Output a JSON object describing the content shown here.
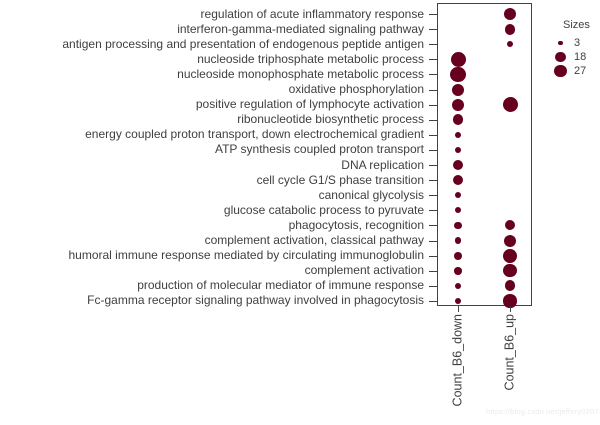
{
  "figure": {
    "background": "#ffffff",
    "watermark": "https://blog.csdn.net/jeffery0207"
  },
  "chart_data": {
    "type": "scatter",
    "subtype": "dotplot-bubble",
    "title": "",
    "xlabel": "",
    "ylabel": "",
    "grid": false,
    "legend_position": "right",
    "dot_color": "#67001F",
    "size_encoding": "area",
    "categories": [
      "Count_B6_down",
      "Count_B6_up"
    ],
    "rows": [
      {
        "label": "regulation of acute inflammatory response",
        "down": null,
        "up": 27
      },
      {
        "label": "interferon-gamma-mediated signaling pathway",
        "down": null,
        "up": 19
      },
      {
        "label": "antigen processing and presentation of endogenous peptide antigen",
        "down": null,
        "up": 6
      },
      {
        "label": "nucleoside triphosphate metabolic process",
        "down": 36,
        "up": null
      },
      {
        "label": "nucleoside monophosphate metabolic process",
        "down": 38,
        "up": null
      },
      {
        "label": "oxidative phosphorylation",
        "down": 23,
        "up": null
      },
      {
        "label": "positive regulation of lymphocyte activation",
        "down": 23,
        "up": 36
      },
      {
        "label": "ribonucleotide biosynthetic process",
        "down": 19,
        "up": null
      },
      {
        "label": "energy coupled proton transport, down electrochemical gradient",
        "down": 7,
        "up": null
      },
      {
        "label": "ATP synthesis coupled proton transport",
        "down": 7,
        "up": null
      },
      {
        "label": "DNA replication",
        "down": 18,
        "up": null
      },
      {
        "label": "cell cycle G1/S phase transition",
        "down": 18,
        "up": null
      },
      {
        "label": "canonical glycolysis",
        "down": 6,
        "up": null
      },
      {
        "label": "glucose catabolic process to pyruvate",
        "down": 6,
        "up": null
      },
      {
        "label": "phagocytosis, recognition",
        "down": 9,
        "up": 16
      },
      {
        "label": "complement activation, classical pathway",
        "down": 7,
        "up": 23
      },
      {
        "label": "humoral immune response mediated by circulating immunoglobulin",
        "down": 10,
        "up": 31
      },
      {
        "label": "complement activation",
        "down": 9,
        "up": 28
      },
      {
        "label": "production of molecular mediator of immune response",
        "down": 7,
        "up": 19
      },
      {
        "label": "Fc-gamma receptor signaling pathway involved in phagocytosis",
        "down": 6,
        "up": 28
      }
    ],
    "legend": {
      "title": "Sizes",
      "sizes": [
        3,
        18,
        27
      ]
    }
  }
}
